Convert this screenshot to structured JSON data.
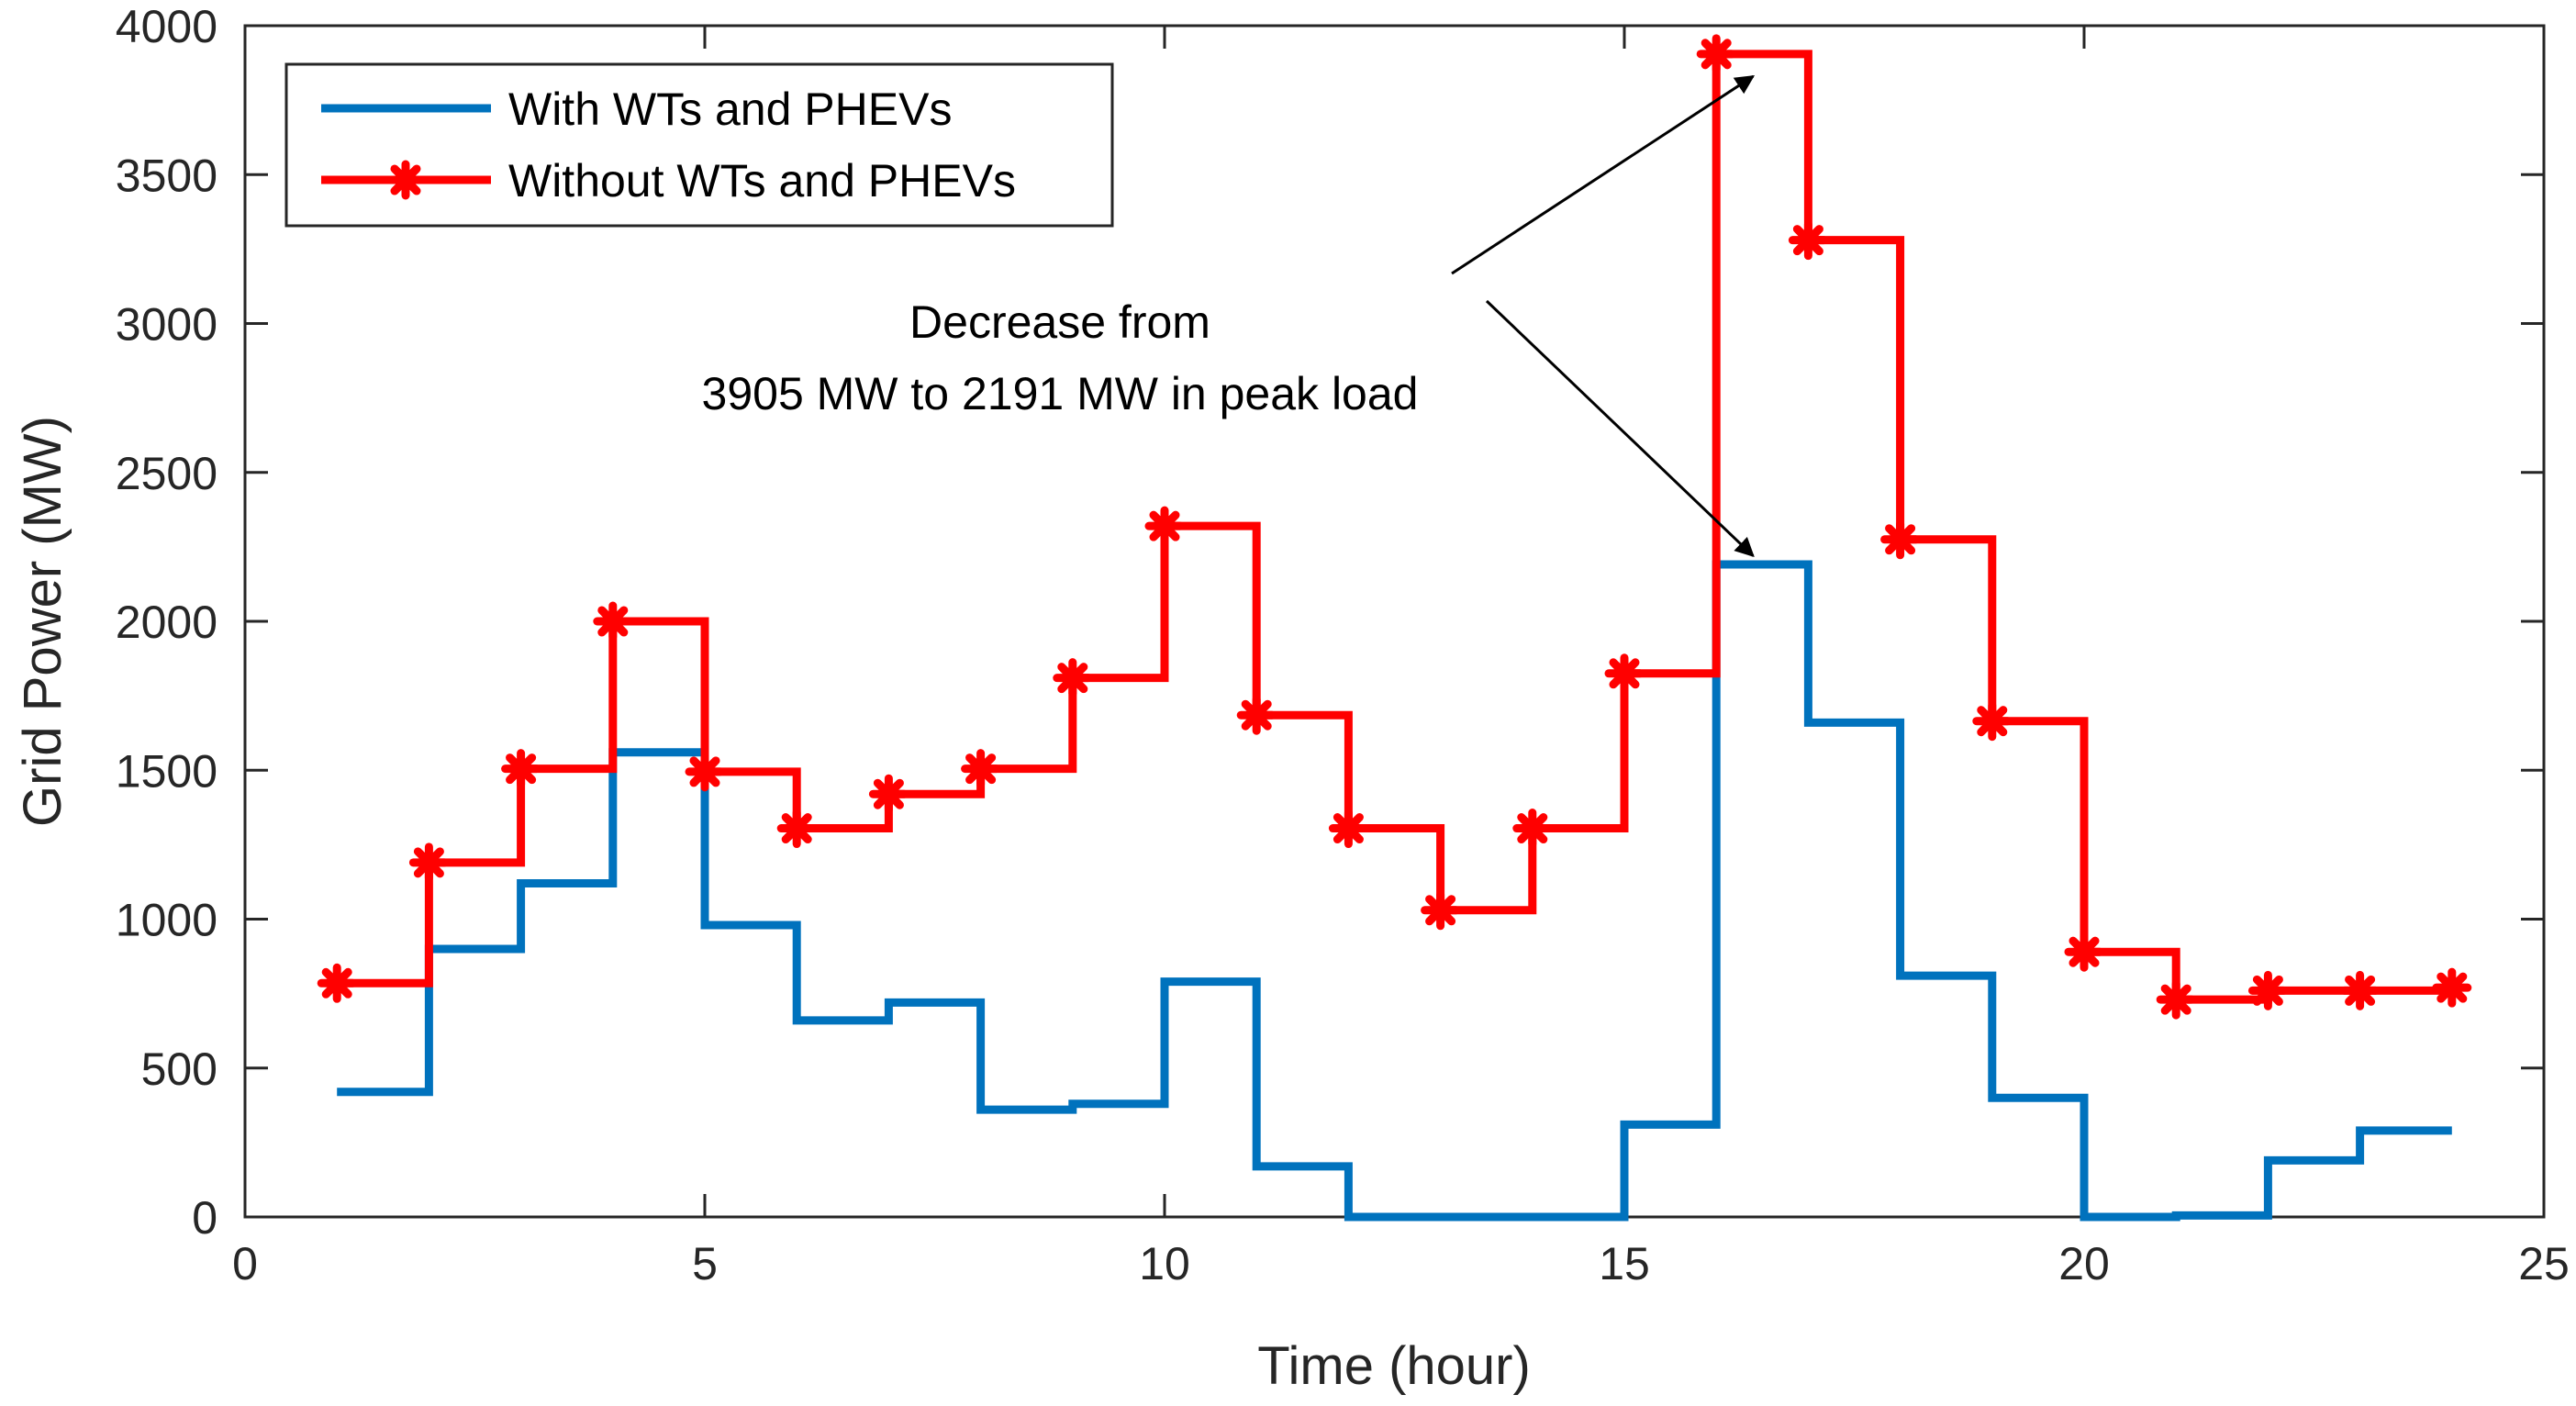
{
  "chart_data": {
    "type": "line",
    "step": "post",
    "xlabel": "Time (hour)",
    "ylabel": "Grid Power (MW)",
    "xlim": [
      0,
      25
    ],
    "ylim": [
      0,
      4000
    ],
    "x_ticks": [
      0,
      5,
      10,
      15,
      20,
      25
    ],
    "y_ticks": [
      0,
      500,
      1000,
      1500,
      2000,
      2500,
      3000,
      3500,
      4000
    ],
    "x": [
      1,
      2,
      3,
      4,
      5,
      6,
      7,
      8,
      9,
      10,
      11,
      12,
      13,
      14,
      15,
      16,
      17,
      18,
      19,
      20,
      21,
      22,
      23,
      24
    ],
    "series": [
      {
        "name": "With WTs and PHEVs",
        "color": "#0072BD",
        "marker": "none",
        "values": [
          420,
          900,
          1120,
          1560,
          980,
          660,
          720,
          360,
          380,
          790,
          170,
          0,
          0,
          0,
          310,
          2191,
          1660,
          810,
          400,
          0,
          5,
          190,
          290,
          290
        ]
      },
      {
        "name": "Without WTs and PHEVs",
        "color": "#FF0000",
        "marker": "asterisk",
        "values": [
          785,
          1190,
          1505,
          2000,
          1495,
          1305,
          1420,
          1505,
          1810,
          2320,
          1685,
          1305,
          1030,
          1305,
          1825,
          3905,
          3280,
          2275,
          1665,
          890,
          730,
          760,
          760,
          770
        ]
      }
    ],
    "legend_position": "top-left",
    "annotation": {
      "lines": [
        "Decrease from",
        "3905 MW to 2191 MW in peak load"
      ],
      "arrow_targets": [
        {
          "x": 16.4,
          "y": 3830
        },
        {
          "x": 16.4,
          "y": 2220
        }
      ]
    },
    "axis_color": "#262626"
  }
}
